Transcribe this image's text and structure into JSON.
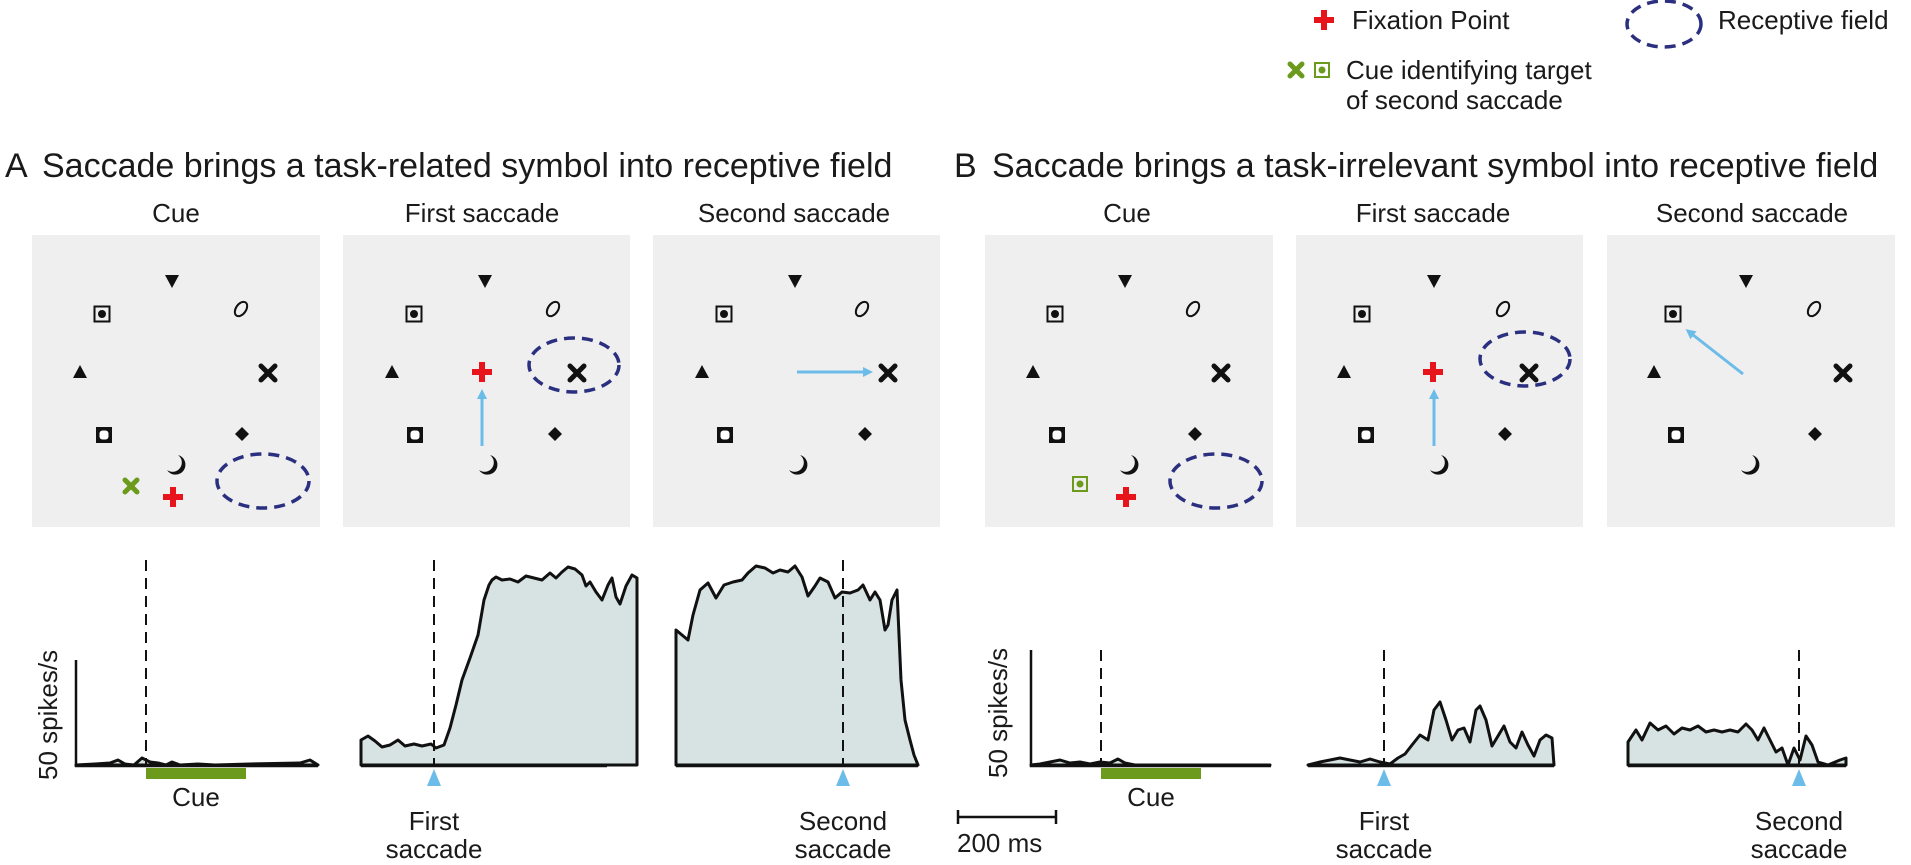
{
  "legend": {
    "fixation_label": "Fixation Point",
    "receptive_label": "Receptive field",
    "cue_label_line1": "Cue identifying target",
    "cue_label_line2": "of second saccade"
  },
  "panel_a": {
    "letter": "A",
    "title": "Saccade brings a task-related symbol into receptive field",
    "sub_cue": "Cue",
    "sub_first": "First saccade",
    "sub_second": "Second saccade",
    "ylabel": "50 spikes/s",
    "cue_bar_label": "Cue",
    "marker_first_line1": "First",
    "marker_first_line2": "saccade",
    "marker_second_line1": "Second",
    "marker_second_line2": "saccade"
  },
  "panel_b": {
    "letter": "B",
    "title": "Saccade brings a task-irrelevant symbol into receptive field",
    "sub_cue": "Cue",
    "sub_first": "First saccade",
    "sub_second": "Second saccade",
    "ylabel": "50 spikes/s",
    "cue_bar_label": "Cue",
    "marker_first_line1": "First",
    "marker_first_line2": "saccade",
    "marker_second_line1": "Second",
    "marker_second_line2": "saccade"
  },
  "scale_bar_label": "200 ms",
  "colors": {
    "fixation": "#e8141b",
    "receptive_field": "#2a2f7f",
    "cue": "#6b9a1c",
    "saccade_arrow": "#6cbce9",
    "trace_fill": "#d7e2e2",
    "scene_bg": "#efefef"
  },
  "icons": [
    "fixation-cross-icon",
    "cue-x-icon",
    "cue-square-icon",
    "triangle-down-icon",
    "ellipse-icon",
    "square-dot-icon",
    "triangle-up-icon",
    "x-icon",
    "square-ring-icon",
    "diamond-icon",
    "crescent-icon"
  ]
}
